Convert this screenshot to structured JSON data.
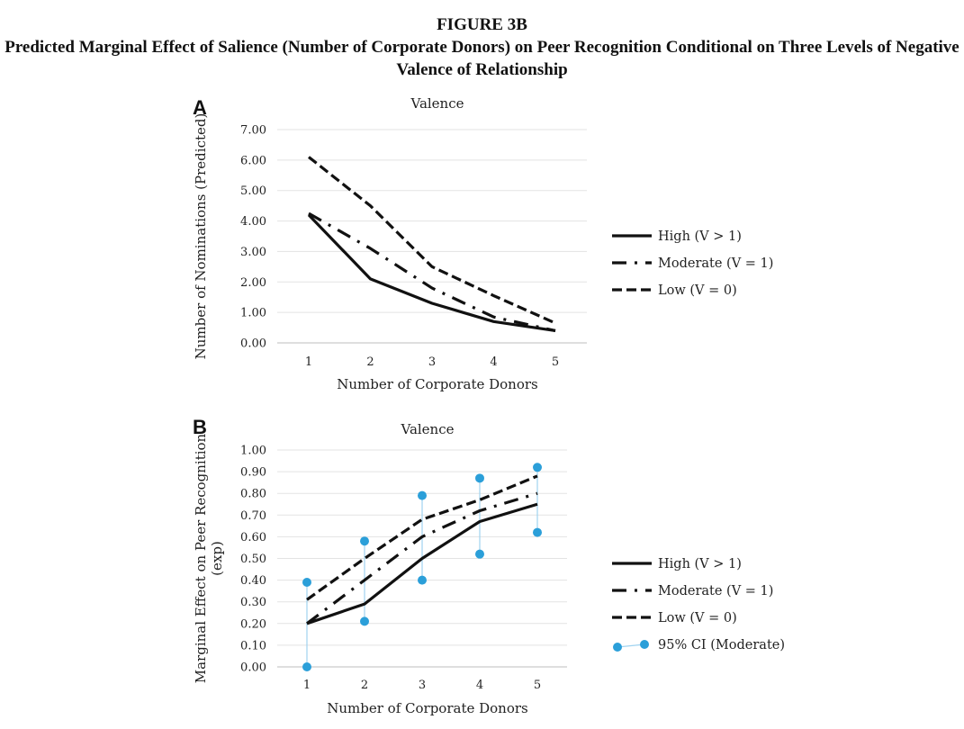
{
  "figure": {
    "label": "FIGURE 3B",
    "title": "Predicted Marginal Effect of Salience (Number of Corporate Donors) on Peer Recognition Conditional on Three Levels of Negative Valence of Relationship"
  },
  "chart_data": [
    {
      "panel": "A",
      "type": "line",
      "title": "Valence",
      "xlabel": "Number of Corporate Donors",
      "ylabel": "Number of Nominations (Predicted)",
      "categories": [
        "1",
        "2",
        "3",
        "4",
        "5"
      ],
      "ylim": [
        0,
        7
      ],
      "yticks": [
        "0.00",
        "1.00",
        "2.00",
        "3.00",
        "4.00",
        "5.00",
        "6.00",
        "7.00"
      ],
      "grid": true,
      "legend": "right",
      "series": [
        {
          "name": "High (V > 1)",
          "style": "solid",
          "values": [
            4.2,
            2.1,
            1.3,
            0.7,
            0.4
          ]
        },
        {
          "name": "Moderate (V = 1)",
          "style": "dashdot",
          "values": [
            4.25,
            3.1,
            1.8,
            0.85,
            0.4
          ]
        },
        {
          "name": "Low (V = 0)",
          "style": "dashed",
          "values": [
            6.1,
            4.5,
            2.5,
            1.55,
            0.65
          ]
        }
      ]
    },
    {
      "panel": "B",
      "type": "line",
      "title": "Valence",
      "xlabel": "Number of Corporate Donors",
      "ylabel_lines": [
        "Marginal Effect on Peer Recognition",
        "(exp)"
      ],
      "categories": [
        "1",
        "2",
        "3",
        "4",
        "5"
      ],
      "ylim": [
        0,
        1
      ],
      "yticks": [
        "0.00",
        "0.10",
        "0.20",
        "0.30",
        "0.40",
        "0.50",
        "0.60",
        "0.70",
        "0.80",
        "0.90",
        "1.00"
      ],
      "grid": true,
      "legend": "right",
      "series": [
        {
          "name": "High (V > 1)",
          "style": "solid",
          "values": [
            0.2,
            0.29,
            0.5,
            0.67,
            0.75
          ]
        },
        {
          "name": "Moderate (V = 1)",
          "style": "dashdot",
          "values": [
            0.2,
            0.4,
            0.6,
            0.72,
            0.8
          ]
        },
        {
          "name": "Low (V = 0)",
          "style": "dashed",
          "values": [
            0.31,
            0.5,
            0.68,
            0.77,
            0.88
          ]
        }
      ],
      "ci": {
        "name": "95% CI (Moderate)",
        "color": "#2b9fd9",
        "lower": [
          0.0,
          0.21,
          0.4,
          0.52,
          0.62
        ],
        "upper": [
          0.39,
          0.58,
          0.79,
          0.87,
          0.92
        ]
      }
    }
  ]
}
